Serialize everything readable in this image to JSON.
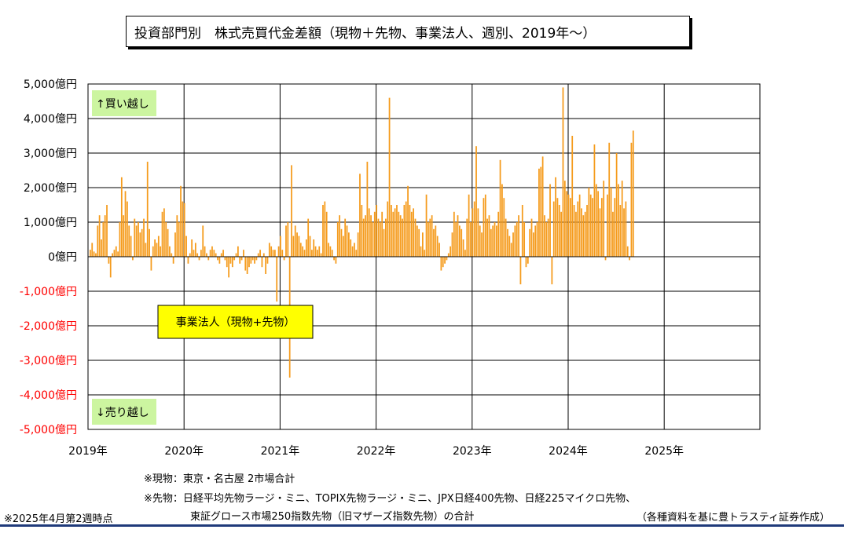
{
  "title": "投資部門別　株式売買代金差額（現物＋先物、事業法人、週別、2019年～）",
  "chart_data": {
    "type": "bar",
    "title": "投資部門別　株式売買代金差額（現物＋先物、事業法人、週別、2019年～）",
    "xlabel": "",
    "ylabel": "",
    "ylim": [
      -5000,
      5000
    ],
    "yticks": [
      {
        "value": 5000,
        "label": "5,000億円"
      },
      {
        "value": 4000,
        "label": "4,000億円"
      },
      {
        "value": 3000,
        "label": "3,000億円"
      },
      {
        "value": 2000,
        "label": "2,000億円"
      },
      {
        "value": 1000,
        "label": "1,000億円"
      },
      {
        "value": 0,
        "label": "0億円"
      },
      {
        "value": -1000,
        "label": "-1,000億円"
      },
      {
        "value": -2000,
        "label": "-2,000億円"
      },
      {
        "value": -3000,
        "label": "-3,000億円"
      },
      {
        "value": -4000,
        "label": "-4,000億円"
      },
      {
        "value": -5000,
        "label": "-5,000億円"
      }
    ],
    "xticks": [
      "2019年",
      "2020年",
      "2021年",
      "2022年",
      "2023年",
      "2024年",
      "2025年"
    ],
    "grid": true,
    "series": [
      {
        "name": "事業法人（現物+先物）",
        "start": "2019-01-04",
        "weeks_per_year": 52,
        "values": [
          200,
          400,
          150,
          100,
          900,
          1200,
          500,
          1000,
          1200,
          1500,
          -200,
          -600,
          100,
          200,
          300,
          150,
          1000,
          2300,
          1200,
          1900,
          1600,
          900,
          600,
          -100,
          1100,
          900,
          1000,
          700,
          800,
          1100,
          400,
          2750,
          800,
          -400,
          300,
          500,
          400,
          600,
          300,
          1300,
          1400,
          1000,
          800,
          300,
          100,
          -200,
          700,
          1200,
          1000,
          2050,
          1600,
          1550,
          600,
          -200,
          100,
          500,
          200,
          400,
          100,
          -100,
          200,
          900,
          300,
          100,
          -100,
          200,
          300,
          200,
          100,
          -100,
          -200,
          100,
          200,
          -100,
          -300,
          -600,
          -200,
          -300,
          -100,
          100,
          300,
          -200,
          -100,
          200,
          -400,
          -500,
          -300,
          -200,
          -100,
          -200,
          -100,
          100,
          200,
          -300,
          100,
          -500,
          -200,
          400,
          300,
          200,
          200,
          -1300,
          300,
          600,
          200,
          -100,
          900,
          1000,
          -3500,
          2650,
          600,
          900,
          700,
          600,
          400,
          300,
          200,
          500,
          1100,
          600,
          200,
          500,
          300,
          200,
          300,
          100,
          1500,
          1600,
          1300,
          400,
          300,
          200,
          -100,
          -200,
          1000,
          1200,
          800,
          600,
          1100,
          900,
          700,
          500,
          300,
          400,
          200,
          700,
          2400,
          1500,
          1100,
          1200,
          2750,
          1400,
          1200,
          1000,
          1300,
          1500,
          1100,
          1000,
          1300,
          800,
          1100,
          1600,
          4600,
          1500,
          1300,
          1400,
          1500,
          1300,
          1200,
          1100,
          1500,
          1600,
          2050,
          1500,
          1300,
          1400,
          1100,
          900,
          800,
          300,
          700,
          200,
          1800,
          1000,
          1100,
          1200,
          800,
          900,
          600,
          400,
          -400,
          -300,
          -200,
          -100,
          100,
          300,
          700,
          1300,
          1000,
          1200,
          900,
          800,
          500,
          200,
          1100,
          1800,
          1000,
          1400,
          1600,
          3200,
          1400,
          900,
          700,
          1700,
          1800,
          1100,
          1200,
          800,
          900,
          1000,
          900,
          1300,
          2800,
          2100,
          1700,
          1100,
          800,
          600,
          400,
          700,
          900,
          1000,
          1200,
          -800,
          1500,
          1000,
          -300,
          -200,
          800,
          1100,
          700,
          900,
          1000,
          2550,
          2600,
          2900,
          1200,
          1000,
          1100,
          2100,
          -800,
          1600,
          2300,
          1700,
          1500,
          1300,
          4900,
          2200,
          1900,
          1800,
          1700,
          3500,
          1500,
          1300,
          1600,
          1800,
          1400,
          1200,
          1300,
          1500,
          2000,
          1800,
          1700,
          3250,
          2100,
          1900,
          1400,
          1700,
          2200,
          -100,
          1800,
          3300,
          2000,
          1300,
          1700,
          3000,
          2100,
          1500,
          2200,
          1400,
          1600,
          300,
          -100,
          3300,
          3650
        ]
      }
    ],
    "annotations": [
      "↑買い越し",
      "↓売り越し",
      "事業法人（現物+先物）"
    ]
  },
  "labels": {
    "buy": "↑買い越し",
    "sell": "↓売り越し",
    "legend": "事業法人（現物+先物）"
  },
  "notes": {
    "line1": "※現物：東京・名古屋 2市場合計",
    "line2": "※先物：日経平均先物ラージ・ミニ、TOPIX先物ラージ・ミニ、JPX日経400先物、日経225マイクロ先物、",
    "line3": "東証グロース市場250指数先物（旧マザーズ指数先物）の合計",
    "asof": "※2025年4月第2週時点",
    "source": "（各種資料を基に豊トラスティ証券作成）"
  },
  "colors": {
    "bar": "#f59b1c",
    "grid": "#000000",
    "label_green": "#ccf5a0",
    "legend_yellow": "#ffff00",
    "negative_tick": "#ff0000",
    "footer_line": "#1f3a7a"
  }
}
